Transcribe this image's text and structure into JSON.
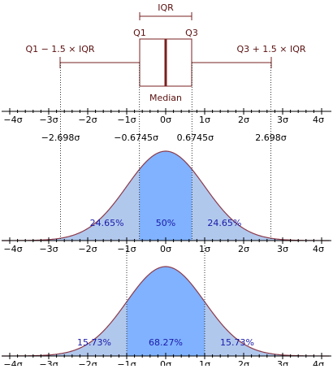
{
  "boxplot": {
    "iqr": "IQR",
    "q1": "Q1",
    "q3": "Q3",
    "lower_fence": "Q1 − 1.5 × IQR",
    "upper_fence": "Q3 + 1.5 × IQR",
    "median": "Median"
  },
  "axis_ticks": [
    "−4σ",
    "−3σ",
    "−2σ",
    "−1σ",
    "0σ",
    "1σ",
    "2σ",
    "3σ",
    "4σ"
  ],
  "quantile_labels": [
    "−2.698σ",
    "−0.6745σ",
    "0.6745σ",
    "2.698σ"
  ],
  "iqr_distribution": {
    "areas": [
      "24.65%",
      "50%",
      "24.65%"
    ]
  },
  "sigma_distribution": {
    "areas": [
      "15.73%",
      "68.27%",
      "15.73%"
    ]
  }
}
